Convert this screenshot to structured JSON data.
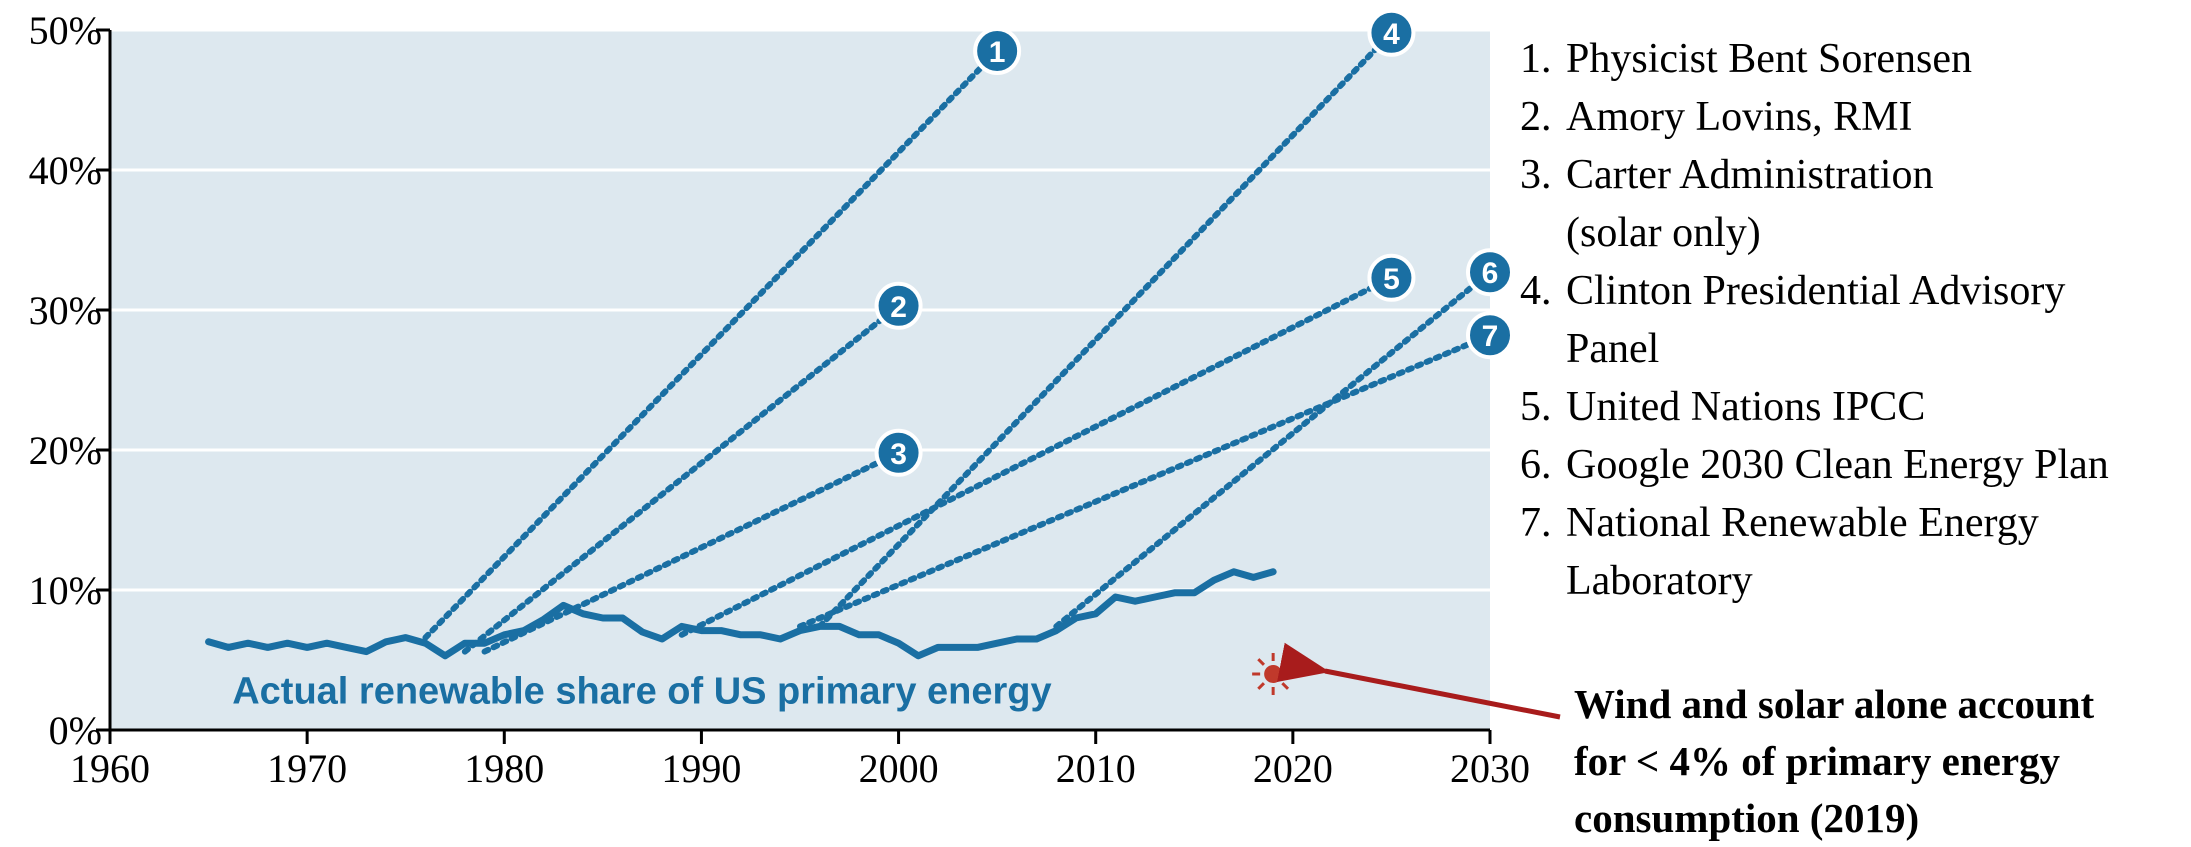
{
  "chart_data": {
    "type": "line",
    "title": "",
    "xlabel": "",
    "ylabel": "",
    "xlim": [
      1960,
      2030
    ],
    "ylim": [
      0,
      50
    ],
    "x_ticks": [
      "1960",
      "1970",
      "1980",
      "1990",
      "2000",
      "2010",
      "2020",
      "2030"
    ],
    "y_ticks": [
      "0%",
      "10%",
      "20%",
      "30%",
      "40%",
      "50%"
    ],
    "grid": "horizontal",
    "plot_background": "#dde8ef",
    "series_color": "#1a6fa3",
    "actual_series": {
      "label": "Actual renewable share of US primary energy",
      "x": [
        1965,
        1966,
        1967,
        1968,
        1969,
        1970,
        1971,
        1972,
        1973,
        1974,
        1975,
        1976,
        1977,
        1978,
        1979,
        1980,
        1981,
        1982,
        1983,
        1984,
        1985,
        1986,
        1987,
        1988,
        1989,
        1990,
        1991,
        1992,
        1993,
        1994,
        1995,
        1996,
        1997,
        1998,
        1999,
        2000,
        2001,
        2002,
        2003,
        2004,
        2005,
        2006,
        2007,
        2008,
        2009,
        2010,
        2011,
        2012,
        2013,
        2014,
        2015,
        2016,
        2017,
        2018,
        2019
      ],
      "y": [
        6.3,
        5.9,
        6.2,
        5.9,
        6.2,
        5.9,
        6.2,
        5.9,
        5.6,
        6.3,
        6.6,
        6.2,
        5.3,
        6.2,
        6.2,
        6.8,
        7.1,
        7.9,
        8.9,
        8.3,
        8.0,
        8.0,
        7.0,
        6.5,
        7.4,
        7.1,
        7.1,
        6.8,
        6.8,
        6.5,
        7.1,
        7.4,
        7.4,
        6.8,
        6.8,
        6.2,
        5.3,
        5.9,
        5.9,
        5.9,
        6.2,
        6.5,
        6.5,
        7.1,
        8.0,
        8.3,
        9.5,
        9.2,
        9.5,
        9.8,
        9.8,
        10.7,
        11.3,
        10.9,
        11.3
      ]
    },
    "forecasts": [
      {
        "id": "1",
        "x": [
          1976,
          2005
        ],
        "y": [
          6.6,
          48.5
        ]
      },
      {
        "id": "2",
        "x": [
          1978,
          2000
        ],
        "y": [
          5.6,
          30.3
        ]
      },
      {
        "id": "3",
        "x": [
          1979,
          2000
        ],
        "y": [
          5.6,
          19.8
        ]
      },
      {
        "id": "4",
        "x": [
          1996,
          2025
        ],
        "y": [
          7.4,
          49.8
        ]
      },
      {
        "id": "5",
        "x": [
          1989,
          2025
        ],
        "y": [
          6.8,
          32.3
        ]
      },
      {
        "id": "6",
        "x": [
          2008,
          2030
        ],
        "y": [
          7.4,
          32.7
        ]
      },
      {
        "id": "7",
        "x": [
          1995,
          2030
        ],
        "y": [
          7.4,
          28.2
        ]
      }
    ],
    "sun_marker": {
      "x": 2019,
      "y": 4,
      "color": "#c0392b"
    }
  },
  "legend": [
    {
      "num": "1.",
      "text": "Physicist Bent Sorensen"
    },
    {
      "num": "2.",
      "text": "Amory Lovins, RMI"
    },
    {
      "num": "3.",
      "text": "Carter Administration"
    },
    {
      "num": "",
      "text": "(solar only)"
    },
    {
      "num": "4.",
      "text": "Clinton Presidential Advisory"
    },
    {
      "num": "",
      "text": "Panel"
    },
    {
      "num": "5.",
      "text": "United Nations IPCC"
    },
    {
      "num": "6.",
      "text": "Google 2030 Clean Energy Plan"
    },
    {
      "num": "7.",
      "text": "National Renewable Energy"
    },
    {
      "num": "",
      "text": "Laboratory"
    }
  ],
  "note": {
    "lines": [
      "Wind and solar alone account",
      "for < 4% of primary energy",
      "consumption (2019)"
    ],
    "arrow_color": "#a81c1c"
  }
}
